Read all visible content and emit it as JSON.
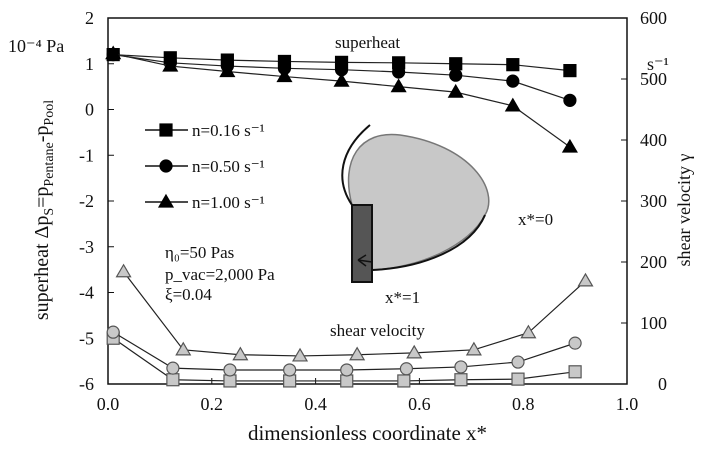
{
  "chart_data": {
    "type": "scatter",
    "y_unit": "10⁻⁴ Pa",
    "y2_unit": "s⁻¹",
    "x_label": "dimensionless coordinate x*",
    "y_label_parts": [
      "superheat Δp",
      "S",
      "=p",
      "Pentane",
      "-p",
      "Pool"
    ],
    "y2_label": "shear velocity γ",
    "annotations": [
      "superheat",
      "shear velocity",
      "x*=0",
      "x*=1",
      "η₀=50 Pas",
      "p_vac=2,000 Pa",
      "ξ=0.04"
    ],
    "xlim": [
      0,
      1
    ],
    "ylim": [
      -6,
      2
    ],
    "y2lim": [
      0,
      600
    ],
    "xticks": [
      {
        "value": 0,
        "label": "0.0"
      },
      {
        "value": 0.2,
        "label": "0.2"
      },
      {
        "value": 0.4,
        "label": "0.4"
      },
      {
        "value": 0.6,
        "label": "0.6"
      },
      {
        "value": 0.8,
        "label": "0.8"
      },
      {
        "value": 1,
        "label": "1.0"
      }
    ],
    "yticks": [
      -6,
      -5,
      -4,
      -3,
      -2,
      -1,
      0,
      1,
      2
    ],
    "y2ticks": [
      0,
      100,
      200,
      300,
      400,
      500,
      600
    ],
    "series": [
      {
        "name": "n=0.16 s⁻¹",
        "color": "#000000",
        "marker": "square",
        "axis": "y",
        "x": [
          0.01,
          0.12,
          0.23,
          0.34,
          0.45,
          0.56,
          0.67,
          0.78,
          0.89
        ],
        "values": [
          1.2,
          1.13,
          1.08,
          1.05,
          1.03,
          1.02,
          1.0,
          0.98,
          0.85
        ]
      },
      {
        "name": "n=0.50 s⁻¹",
        "color": "#000000",
        "marker": "circle",
        "axis": "y",
        "x": [
          0.01,
          0.12,
          0.23,
          0.34,
          0.45,
          0.56,
          0.67,
          0.78,
          0.89
        ],
        "values": [
          1.2,
          1.02,
          0.95,
          0.9,
          0.87,
          0.82,
          0.75,
          0.62,
          0.2
        ]
      },
      {
        "name": "n=1.00 s⁻¹",
        "color": "#000000",
        "marker": "triangle",
        "axis": "y",
        "x": [
          0.01,
          0.12,
          0.23,
          0.34,
          0.45,
          0.56,
          0.67,
          0.78,
          0.89
        ],
        "values": [
          1.22,
          0.95,
          0.83,
          0.72,
          0.62,
          0.5,
          0.38,
          0.08,
          -0.82
        ]
      },
      {
        "color": "#c8c8c8",
        "marker": "square",
        "axis": "y2",
        "x": [
          0.01,
          0.125,
          0.235,
          0.35,
          0.46,
          0.57,
          0.68,
          0.79,
          0.9
        ],
        "values": [
          75,
          7,
          5,
          5,
          5,
          5,
          7,
          8,
          20
        ]
      },
      {
        "color": "#c8c8c8",
        "marker": "circle",
        "axis": "y2",
        "x": [
          0.01,
          0.125,
          0.235,
          0.35,
          0.46,
          0.575,
          0.68,
          0.79,
          0.9
        ],
        "values": [
          85,
          26,
          23,
          23,
          23,
          25,
          28,
          36,
          67
        ]
      },
      {
        "color": "#c8c8c8",
        "marker": "triangle",
        "axis": "y2",
        "x": [
          0.03,
          0.145,
          0.255,
          0.37,
          0.48,
          0.59,
          0.705,
          0.81,
          0.92
        ],
        "values": [
          184,
          56,
          48,
          46,
          48,
          51,
          56,
          84,
          169
        ]
      }
    ]
  }
}
